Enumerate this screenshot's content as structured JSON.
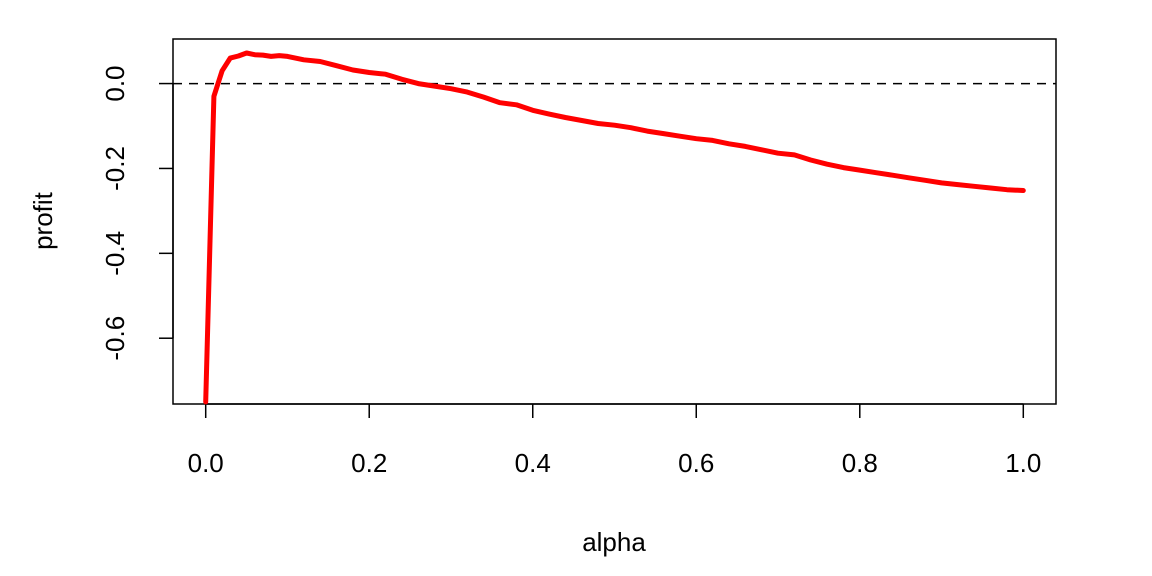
{
  "chart_data": {
    "type": "line",
    "title": "",
    "xlabel": "alpha",
    "ylabel": "profit",
    "xlim": [
      -0.04,
      1.04
    ],
    "ylim": [
      -0.755,
      0.105
    ],
    "grid": false,
    "legend": "none",
    "x_ticks": [
      "0.0",
      "0.2",
      "0.4",
      "0.6",
      "0.8",
      "1.0"
    ],
    "y_ticks": [
      "-0.6",
      "-0.4",
      "-0.2",
      "0.0"
    ],
    "reference_line": {
      "y": 0.0,
      "style": "dashed",
      "color": "#000000"
    },
    "series": [
      {
        "color": "#ff0000",
        "x": [
          0.0,
          0.01,
          0.02,
          0.03,
          0.04,
          0.05,
          0.06,
          0.07,
          0.08,
          0.09,
          0.1,
          0.12,
          0.14,
          0.16,
          0.18,
          0.2,
          0.22,
          0.24,
          0.26,
          0.28,
          0.3,
          0.32,
          0.34,
          0.36,
          0.38,
          0.4,
          0.42,
          0.44,
          0.46,
          0.48,
          0.5,
          0.52,
          0.54,
          0.56,
          0.58,
          0.6,
          0.62,
          0.64,
          0.66,
          0.68,
          0.7,
          0.72,
          0.74,
          0.76,
          0.78,
          0.8,
          0.82,
          0.84,
          0.86,
          0.88,
          0.9,
          0.92,
          0.94,
          0.96,
          0.98,
          1.0
        ],
        "y": [
          -0.75,
          -0.03,
          0.03,
          0.06,
          0.065,
          0.072,
          0.068,
          0.067,
          0.064,
          0.066,
          0.064,
          0.056,
          0.052,
          0.042,
          0.032,
          0.026,
          0.022,
          0.01,
          0.0,
          -0.006,
          -0.012,
          -0.02,
          -0.032,
          -0.045,
          -0.05,
          -0.063,
          -0.072,
          -0.08,
          -0.087,
          -0.094,
          -0.098,
          -0.104,
          -0.112,
          -0.118,
          -0.124,
          -0.13,
          -0.134,
          -0.142,
          -0.148,
          -0.156,
          -0.164,
          -0.168,
          -0.18,
          -0.19,
          -0.198,
          -0.204,
          -0.21,
          -0.216,
          -0.222,
          -0.228,
          -0.234,
          -0.238,
          -0.242,
          -0.246,
          -0.25,
          -0.252
        ]
      }
    ]
  }
}
